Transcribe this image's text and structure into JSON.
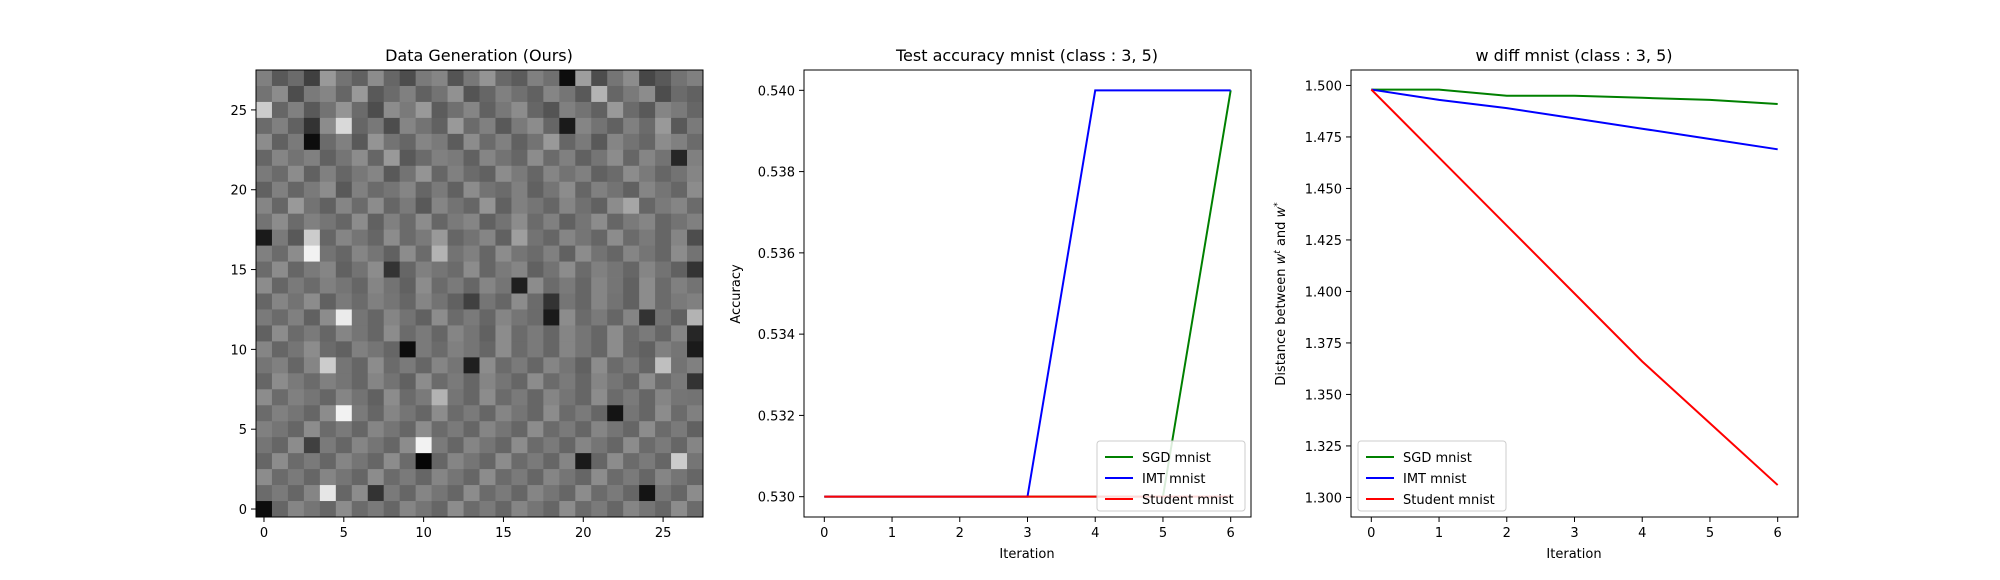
{
  "figure": {
    "background": "#ffffff"
  },
  "chart_data": [
    {
      "type": "heatmap",
      "title": "Data Generation (Ours)",
      "colormap": "gray",
      "grid": false,
      "rows": 28,
      "cols": 28,
      "xlim": [
        -0.5,
        27.5
      ],
      "ylim": [
        27.5,
        -0.5
      ],
      "xticks": [
        0,
        5,
        10,
        15,
        20,
        25
      ],
      "yticks": [
        0,
        5,
        10,
        15,
        20,
        25
      ],
      "xtick_labels": [
        "0",
        "5",
        "10",
        "15",
        "20",
        "25"
      ],
      "ytick_labels": [
        "0",
        "5",
        "10",
        "15",
        "20",
        "25"
      ],
      "values": [
        [
          0.5,
          0.35,
          0.42,
          0.25,
          0.6,
          0.45,
          0.38,
          0.55,
          0.4,
          0.3,
          0.48,
          0.52,
          0.33,
          0.47,
          0.58,
          0.41,
          0.36,
          0.5,
          0.44,
          0.05,
          0.62,
          0.3,
          0.46,
          0.55,
          0.28,
          0.35,
          0.45,
          0.5
        ],
        [
          0.45,
          0.55,
          0.3,
          0.48,
          0.52,
          0.4,
          0.6,
          0.35,
          0.42,
          0.5,
          0.38,
          0.45,
          0.57,
          0.33,
          0.4,
          0.5,
          0.44,
          0.38,
          0.52,
          0.46,
          0.35,
          0.7,
          0.4,
          0.48,
          0.55,
          0.3,
          0.42,
          0.38
        ],
        [
          0.8,
          0.4,
          0.5,
          0.35,
          0.45,
          0.58,
          0.42,
          0.3,
          0.55,
          0.48,
          0.6,
          0.36,
          0.44,
          0.52,
          0.38,
          0.47,
          0.55,
          0.4,
          0.33,
          0.5,
          0.45,
          0.38,
          0.6,
          0.42,
          0.35,
          0.52,
          0.48,
          0.4
        ],
        [
          0.42,
          0.5,
          0.38,
          0.2,
          0.55,
          0.85,
          0.4,
          0.47,
          0.3,
          0.52,
          0.45,
          0.38,
          0.6,
          0.42,
          0.5,
          0.35,
          0.48,
          0.55,
          0.4,
          0.1,
          0.52,
          0.45,
          0.38,
          0.5,
          0.42,
          0.6,
          0.35,
          0.48
        ],
        [
          0.55,
          0.38,
          0.48,
          0.05,
          0.42,
          0.5,
          0.35,
          0.58,
          0.45,
          0.4,
          0.52,
          0.48,
          0.36,
          0.55,
          0.42,
          0.5,
          0.38,
          0.45,
          0.6,
          0.4,
          0.48,
          0.35,
          0.52,
          0.45,
          0.4,
          0.55,
          0.5,
          0.42
        ],
        [
          0.4,
          0.52,
          0.45,
          0.5,
          0.38,
          0.46,
          0.55,
          0.4,
          0.6,
          0.35,
          0.42,
          0.5,
          0.48,
          0.38,
          0.52,
          0.45,
          0.4,
          0.55,
          0.42,
          0.5,
          0.38,
          0.46,
          0.55,
          0.4,
          0.52,
          0.45,
          0.15,
          0.5
        ],
        [
          0.48,
          0.42,
          0.55,
          0.38,
          0.5,
          0.4,
          0.47,
          0.52,
          0.35,
          0.45,
          0.58,
          0.4,
          0.5,
          0.42,
          0.38,
          0.55,
          0.48,
          0.4,
          0.52,
          0.45,
          0.5,
          0.38,
          0.42,
          0.55,
          0.48,
          0.4,
          0.45,
          0.52
        ],
        [
          0.38,
          0.5,
          0.4,
          0.48,
          0.55,
          0.35,
          0.5,
          0.42,
          0.46,
          0.52,
          0.4,
          0.48,
          0.38,
          0.55,
          0.45,
          0.42,
          0.5,
          0.38,
          0.46,
          0.55,
          0.4,
          0.5,
          0.45,
          0.38,
          0.52,
          0.46,
          0.4,
          0.55
        ],
        [
          0.52,
          0.4,
          0.6,
          0.45,
          0.38,
          0.52,
          0.42,
          0.55,
          0.4,
          0.48,
          0.35,
          0.52,
          0.45,
          0.4,
          0.58,
          0.38,
          0.5,
          0.46,
          0.4,
          0.52,
          0.44,
          0.38,
          0.55,
          0.65,
          0.4,
          0.48,
          0.52,
          0.42
        ],
        [
          0.45,
          0.55,
          0.42,
          0.5,
          0.46,
          0.4,
          0.55,
          0.38,
          0.5,
          0.42,
          0.55,
          0.4,
          0.48,
          0.52,
          0.38,
          0.45,
          0.55,
          0.42,
          0.5,
          0.38,
          0.46,
          0.55,
          0.4,
          0.48,
          0.52,
          0.4,
          0.45,
          0.5
        ],
        [
          0.1,
          0.48,
          0.35,
          0.8,
          0.4,
          0.52,
          0.46,
          0.4,
          0.55,
          0.42,
          0.48,
          0.6,
          0.4,
          0.45,
          0.52,
          0.38,
          0.62,
          0.45,
          0.4,
          0.52,
          0.46,
          0.4,
          0.55,
          0.42,
          0.48,
          0.4,
          0.52,
          0.3
        ],
        [
          0.5,
          0.42,
          0.55,
          0.95,
          0.45,
          0.4,
          0.52,
          0.46,
          0.38,
          0.55,
          0.42,
          0.7,
          0.45,
          0.5,
          0.4,
          0.55,
          0.46,
          0.42,
          0.5,
          0.38,
          0.55,
          0.45,
          0.4,
          0.52,
          0.46,
          0.4,
          0.55,
          0.45
        ],
        [
          0.42,
          0.55,
          0.4,
          0.48,
          0.52,
          0.38,
          0.45,
          0.55,
          0.2,
          0.4,
          0.5,
          0.46,
          0.42,
          0.55,
          0.4,
          0.48,
          0.52,
          0.38,
          0.45,
          0.55,
          0.42,
          0.5,
          0.46,
          0.4,
          0.52,
          0.45,
          0.38,
          0.2
        ],
        [
          0.55,
          0.4,
          0.48,
          0.42,
          0.5,
          0.46,
          0.4,
          0.52,
          0.45,
          0.38,
          0.55,
          0.42,
          0.48,
          0.4,
          0.52,
          0.46,
          0.12,
          0.55,
          0.42,
          0.48,
          0.4,
          0.52,
          0.46,
          0.38,
          0.55,
          0.42,
          0.5,
          0.45
        ],
        [
          0.4,
          0.52,
          0.45,
          0.55,
          0.38,
          0.48,
          0.42,
          0.5,
          0.46,
          0.4,
          0.52,
          0.45,
          0.38,
          0.25,
          0.46,
          0.4,
          0.55,
          0.42,
          0.2,
          0.46,
          0.4,
          0.52,
          0.45,
          0.38,
          0.55,
          0.42,
          0.48,
          0.5
        ],
        [
          0.48,
          0.42,
          0.5,
          0.38,
          0.55,
          0.92,
          0.46,
          0.4,
          0.52,
          0.45,
          0.38,
          0.55,
          0.42,
          0.48,
          0.4,
          0.52,
          0.46,
          0.42,
          0.1,
          0.55,
          0.42,
          0.48,
          0.4,
          0.52,
          0.2,
          0.45,
          0.38,
          0.7
        ],
        [
          0.38,
          0.55,
          0.42,
          0.48,
          0.4,
          0.52,
          0.46,
          0.4,
          0.55,
          0.42,
          0.48,
          0.4,
          0.52,
          0.46,
          0.38,
          0.55,
          0.42,
          0.48,
          0.4,
          0.52,
          0.46,
          0.4,
          0.55,
          0.42,
          0.48,
          0.4,
          0.52,
          0.15
        ],
        [
          0.52,
          0.4,
          0.46,
          0.55,
          0.42,
          0.38,
          0.5,
          0.46,
          0.4,
          0.05,
          0.48,
          0.42,
          0.5,
          0.46,
          0.4,
          0.55,
          0.42,
          0.48,
          0.4,
          0.52,
          0.46,
          0.4,
          0.55,
          0.42,
          0.38,
          0.5,
          0.46,
          0.1
        ],
        [
          0.46,
          0.5,
          0.4,
          0.52,
          0.8,
          0.46,
          0.4,
          0.55,
          0.42,
          0.48,
          0.4,
          0.52,
          0.46,
          0.12,
          0.55,
          0.42,
          0.48,
          0.4,
          0.52,
          0.46,
          0.38,
          0.55,
          0.42,
          0.48,
          0.4,
          0.75,
          0.45,
          0.5
        ],
        [
          0.4,
          0.55,
          0.48,
          0.42,
          0.5,
          0.46,
          0.4,
          0.52,
          0.45,
          0.38,
          0.55,
          0.42,
          0.48,
          0.4,
          0.52,
          0.46,
          0.4,
          0.55,
          0.42,
          0.48,
          0.4,
          0.52,
          0.46,
          0.4,
          0.55,
          0.42,
          0.48,
          0.2
        ],
        [
          0.55,
          0.42,
          0.5,
          0.46,
          0.4,
          0.52,
          0.45,
          0.38,
          0.55,
          0.42,
          0.48,
          0.7,
          0.46,
          0.4,
          0.55,
          0.42,
          0.48,
          0.4,
          0.52,
          0.46,
          0.4,
          0.55,
          0.42,
          0.48,
          0.4,
          0.52,
          0.46,
          0.45
        ],
        [
          0.42,
          0.5,
          0.46,
          0.4,
          0.55,
          0.95,
          0.48,
          0.4,
          0.52,
          0.46,
          0.4,
          0.55,
          0.42,
          0.48,
          0.4,
          0.52,
          0.46,
          0.4,
          0.55,
          0.42,
          0.48,
          0.4,
          0.08,
          0.46,
          0.4,
          0.55,
          0.42,
          0.5
        ],
        [
          0.5,
          0.46,
          0.4,
          0.55,
          0.42,
          0.48,
          0.4,
          0.52,
          0.46,
          0.4,
          0.55,
          0.42,
          0.48,
          0.4,
          0.52,
          0.46,
          0.4,
          0.55,
          0.42,
          0.48,
          0.4,
          0.52,
          0.46,
          0.4,
          0.55,
          0.42,
          0.48,
          0.38
        ],
        [
          0.46,
          0.4,
          0.55,
          0.25,
          0.48,
          0.4,
          0.52,
          0.46,
          0.4,
          0.55,
          0.95,
          0.48,
          0.4,
          0.52,
          0.46,
          0.4,
          0.55,
          0.42,
          0.48,
          0.4,
          0.52,
          0.46,
          0.4,
          0.55,
          0.42,
          0.48,
          0.4,
          0.52
        ],
        [
          0.4,
          0.55,
          0.42,
          0.48,
          0.4,
          0.52,
          0.46,
          0.4,
          0.55,
          0.42,
          0.02,
          0.4,
          0.52,
          0.46,
          0.4,
          0.55,
          0.42,
          0.48,
          0.4,
          0.52,
          0.1,
          0.4,
          0.55,
          0.42,
          0.48,
          0.4,
          0.8,
          0.46
        ],
        [
          0.55,
          0.42,
          0.48,
          0.4,
          0.52,
          0.46,
          0.4,
          0.55,
          0.42,
          0.48,
          0.4,
          0.52,
          0.46,
          0.4,
          0.55,
          0.42,
          0.48,
          0.4,
          0.52,
          0.46,
          0.4,
          0.55,
          0.42,
          0.48,
          0.4,
          0.52,
          0.46,
          0.4
        ],
        [
          0.42,
          0.48,
          0.4,
          0.52,
          0.9,
          0.4,
          0.55,
          0.2,
          0.48,
          0.4,
          0.52,
          0.46,
          0.4,
          0.55,
          0.42,
          0.48,
          0.4,
          0.52,
          0.46,
          0.4,
          0.55,
          0.42,
          0.48,
          0.4,
          0.08,
          0.46,
          0.4,
          0.55
        ],
        [
          0.05,
          0.4,
          0.52,
          0.46,
          0.4,
          0.55,
          0.42,
          0.48,
          0.4,
          0.52,
          0.46,
          0.4,
          0.55,
          0.42,
          0.48,
          0.4,
          0.52,
          0.46,
          0.4,
          0.55,
          0.42,
          0.48,
          0.4,
          0.52,
          0.46,
          0.4,
          0.55,
          0.42
        ]
      ]
    },
    {
      "type": "line",
      "title": "Test accuracy mnist (class : 3, 5)",
      "xlabel": "Iteration",
      "ylabel": "Accuracy",
      "x": [
        0,
        1,
        2,
        3,
        4,
        5,
        6
      ],
      "xlim": [
        -0.3,
        6.3
      ],
      "ylim": [
        0.5295,
        0.5405
      ],
      "xticks": [
        0,
        1,
        2,
        3,
        4,
        5,
        6
      ],
      "yticks": [
        0.53,
        0.532,
        0.534,
        0.536,
        0.538,
        0.54
      ],
      "xtick_labels": [
        "0",
        "1",
        "2",
        "3",
        "4",
        "5",
        "6"
      ],
      "ytick_labels": [
        "0.530",
        "0.532",
        "0.534",
        "0.536",
        "0.538",
        "0.540"
      ],
      "grid": false,
      "legend_position": "lower-right",
      "series": [
        {
          "name": "SGD mnist",
          "color": "#008000",
          "values": [
            0.53,
            0.53,
            0.53,
            0.53,
            0.53,
            0.53,
            0.54
          ]
        },
        {
          "name": "IMT mnist",
          "color": "#0000ff",
          "values": [
            0.53,
            0.53,
            0.53,
            0.53,
            0.54,
            0.54,
            0.54
          ]
        },
        {
          "name": "Student mnist",
          "color": "#ff0000",
          "values": [
            0.53,
            0.53,
            0.53,
            0.53,
            0.53,
            0.53,
            0.53
          ]
        }
      ]
    },
    {
      "type": "line",
      "title": "w diff mnist (class : 3, 5)",
      "xlabel": "Iteration",
      "ylabel_parts": [
        "Distance between ",
        "w",
        "t",
        " and ",
        "w",
        "*"
      ],
      "x": [
        0,
        1,
        2,
        3,
        4,
        5,
        6
      ],
      "xlim": [
        -0.3,
        6.3
      ],
      "ylim": [
        1.2905,
        1.5075
      ],
      "xticks": [
        0,
        1,
        2,
        3,
        4,
        5,
        6
      ],
      "yticks": [
        1.3,
        1.325,
        1.35,
        1.375,
        1.4,
        1.425,
        1.45,
        1.475,
        1.5
      ],
      "xtick_labels": [
        "0",
        "1",
        "2",
        "3",
        "4",
        "5",
        "6"
      ],
      "ytick_labels": [
        "1.300",
        "1.325",
        "1.350",
        "1.375",
        "1.400",
        "1.425",
        "1.450",
        "1.475",
        "1.500"
      ],
      "grid": false,
      "legend_position": "lower-left",
      "series": [
        {
          "name": "SGD mnist",
          "color": "#008000",
          "values": [
            1.498,
            1.498,
            1.495,
            1.495,
            1.494,
            1.493,
            1.491
          ]
        },
        {
          "name": "IMT mnist",
          "color": "#0000ff",
          "values": [
            1.498,
            1.493,
            1.489,
            1.484,
            1.479,
            1.474,
            1.469
          ]
        },
        {
          "name": "Student mnist",
          "color": "#ff0000",
          "values": [
            1.498,
            1.465,
            1.432,
            1.399,
            1.366,
            1.336,
            1.306
          ]
        }
      ]
    }
  ]
}
